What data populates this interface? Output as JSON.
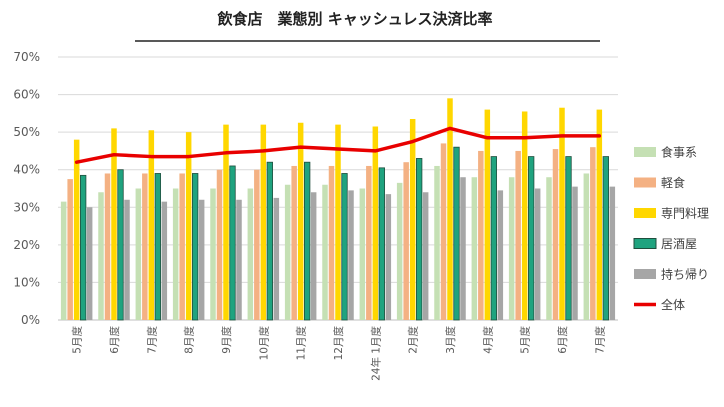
{
  "chart_data": {
    "type": "bar",
    "title": "飲食店　業態別 キャッシュレス決済比率",
    "xlabel": "",
    "ylabel": "",
    "ylim": [
      0,
      70
    ],
    "yticks": [
      "0%",
      "10%",
      "20%",
      "30%",
      "40%",
      "50%",
      "60%",
      "70%"
    ],
    "grid": true,
    "legend_position": "right",
    "categories": [
      "5月度",
      "6月度",
      "7月度",
      "8月度",
      "9月度",
      "10月度",
      "11月度",
      "12月度",
      "24年 1月度",
      "2月度",
      "3月度",
      "4月度",
      "5月度",
      "6月度",
      "7月度"
    ],
    "series": [
      {
        "name": "食事系",
        "type": "bar",
        "color": "#c5e0b4",
        "values": [
          31.5,
          34.0,
          35.0,
          35.0,
          35.0,
          35.0,
          36.0,
          36.0,
          35.0,
          36.5,
          41.0,
          38.0,
          38.0,
          38.0,
          39.0
        ]
      },
      {
        "name": "軽食",
        "type": "bar",
        "color": "#f4b183",
        "values": [
          37.5,
          39.0,
          39.0,
          39.0,
          40.0,
          40.0,
          41.0,
          41.0,
          41.0,
          42.0,
          47.0,
          45.0,
          45.0,
          45.5,
          46.0
        ]
      },
      {
        "name": "専門料理",
        "type": "bar",
        "color": "#ffd700",
        "values": [
          48.0,
          51.0,
          50.5,
          50.0,
          52.0,
          52.0,
          52.5,
          52.0,
          51.5,
          53.5,
          59.0,
          56.0,
          55.5,
          56.5,
          56.0
        ]
      },
      {
        "name": "居酒屋",
        "type": "bar",
        "color": "#1fa37f",
        "values": [
          38.5,
          40.0,
          39.0,
          39.0,
          41.0,
          42.0,
          42.0,
          39.0,
          40.5,
          43.0,
          46.0,
          43.5,
          43.5,
          43.5,
          43.5
        ]
      },
      {
        "name": "持ち帰り",
        "type": "bar",
        "color": "#a6a6a6",
        "values": [
          30.0,
          32.0,
          31.5,
          32.0,
          32.0,
          32.5,
          34.0,
          34.5,
          33.5,
          34.0,
          38.0,
          34.5,
          35.0,
          35.5,
          35.5
        ]
      },
      {
        "name": "全体",
        "type": "line",
        "color": "#e80000",
        "values": [
          42.0,
          44.0,
          43.5,
          43.5,
          44.5,
          45.0,
          46.0,
          45.5,
          45.0,
          47.5,
          51.0,
          48.5,
          48.5,
          49.0,
          49.0
        ]
      }
    ]
  }
}
